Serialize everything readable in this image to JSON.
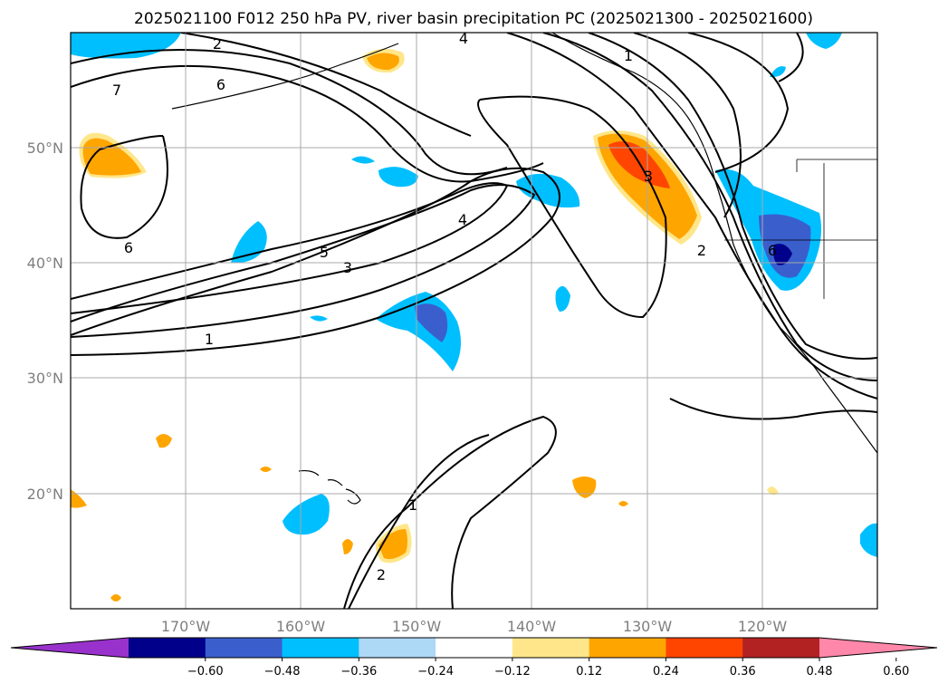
{
  "title": "2025021100 F012 250 hPa PV, river basin precipitation PC (2025021300 - 2025021600)",
  "map": {
    "lat_labels": [
      "50°N",
      "40°N",
      "30°N",
      "20°N"
    ],
    "lon_labels": [
      "170°W",
      "160°W",
      "150°W",
      "140°W",
      "130°W",
      "120°W"
    ],
    "contour_labels": [
      "1",
      "2",
      "3",
      "4",
      "5",
      "6",
      "7"
    ],
    "grid": true
  },
  "colorbar": {
    "tick_labels": [
      "−0.60",
      "−0.48",
      "−0.36",
      "−0.24",
      "−0.12",
      "0.12",
      "0.24",
      "0.36",
      "0.48",
      "0.60"
    ],
    "colors": [
      "#9932cc",
      "#00008b",
      "#3a5fcd",
      "#00bfff",
      "#add8f6",
      "#ffffff",
      "#ffe68a",
      "#ffa500",
      "#ff4500",
      "#b22222",
      "#ff88aa"
    ]
  }
}
